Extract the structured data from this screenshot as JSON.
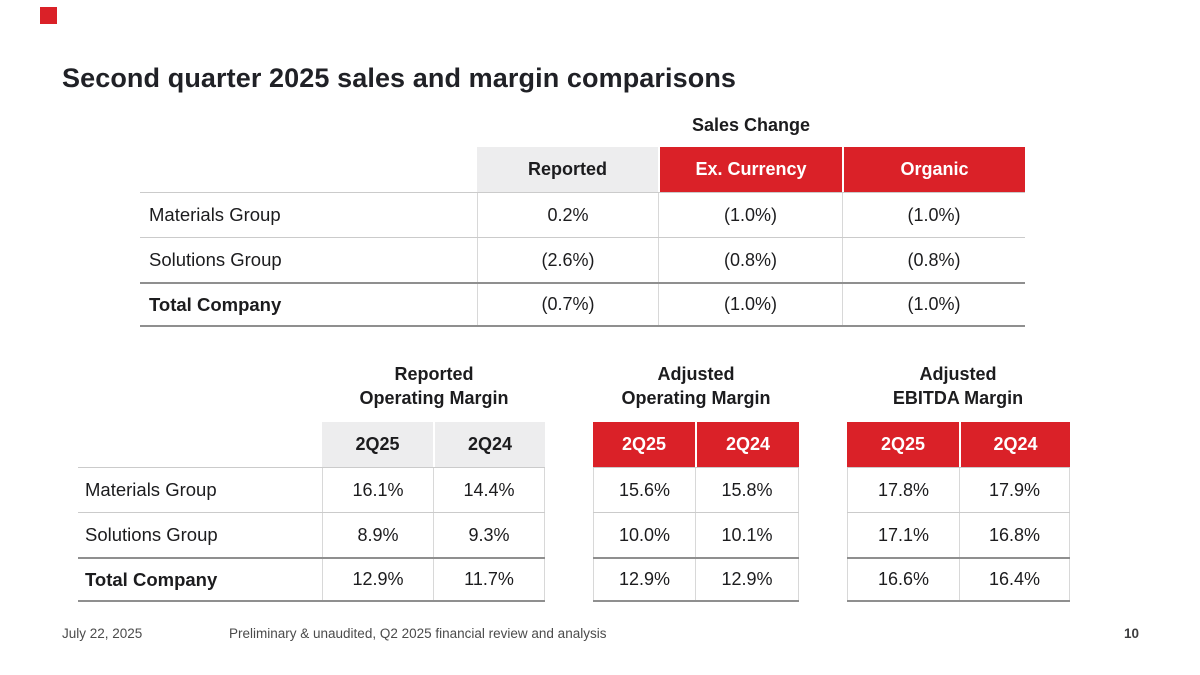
{
  "slide": {
    "title": "Second quarter 2025 sales and margin comparisons",
    "footer": {
      "date": "July 22, 2025",
      "disclaimer": "Preliminary & unaudited, Q2 2025 financial review and analysis",
      "page_number": "10"
    },
    "colors": {
      "accent_red": "#da2128",
      "header_gray": "#ededee"
    }
  },
  "sales_change": {
    "title": "Sales Change",
    "columns": [
      "Reported",
      "Ex. Currency",
      "Organic"
    ],
    "rows": [
      {
        "label": "Materials Group",
        "values": [
          "0.2%",
          "(1.0%)",
          "(1.0%)"
        ]
      },
      {
        "label": "Solutions Group",
        "values": [
          "(2.6%)",
          "(0.8%)",
          "(0.8%)"
        ]
      },
      {
        "label": "Total Company",
        "values": [
          "(0.7%)",
          "(1.0%)",
          "(1.0%)"
        ]
      }
    ]
  },
  "margin_tables": [
    {
      "title_line1": "Reported",
      "title_line2": "Operating Margin",
      "columns": [
        "2Q25",
        "2Q24"
      ],
      "rows": [
        {
          "label": "Materials Group",
          "values": [
            "16.1%",
            "14.4%"
          ]
        },
        {
          "label": "Solutions Group",
          "values": [
            "8.9%",
            "9.3%"
          ]
        },
        {
          "label": "Total Company",
          "values": [
            "12.9%",
            "11.7%"
          ]
        }
      ]
    },
    {
      "title_line1": "Adjusted",
      "title_line2": "Operating Margin",
      "columns": [
        "2Q25",
        "2Q24"
      ],
      "rows": [
        {
          "values": [
            "15.6%",
            "15.8%"
          ]
        },
        {
          "values": [
            "10.0%",
            "10.1%"
          ]
        },
        {
          "values": [
            "12.9%",
            "12.9%"
          ]
        }
      ]
    },
    {
      "title_line1": "Adjusted",
      "title_line2": "EBITDA Margin",
      "columns": [
        "2Q25",
        "2Q24"
      ],
      "rows": [
        {
          "values": [
            "17.8%",
            "17.9%"
          ]
        },
        {
          "values": [
            "17.1%",
            "16.8%"
          ]
        },
        {
          "values": [
            "16.6%",
            "16.4%"
          ]
        }
      ]
    }
  ]
}
